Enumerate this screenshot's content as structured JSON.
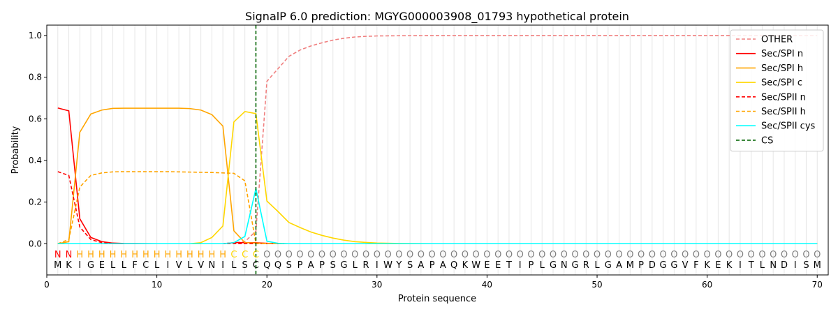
{
  "chart_data": {
    "type": "line",
    "title": "SignalP 6.0 prediction: MGYG000003908_01793 hypothetical protein",
    "xlabel": "Protein sequence",
    "ylabel": "Probability",
    "xlim": [
      0,
      71
    ],
    "ylim": [
      -0.15,
      1.05
    ],
    "xticks": [
      0,
      10,
      20,
      30,
      40,
      50,
      60,
      70
    ],
    "yticks": [
      0.0,
      0.2,
      0.4,
      0.6,
      0.8,
      1.0
    ],
    "grid": "vertical lines at each residue",
    "legend_position": "top-right",
    "sequence": "MKIGELLFCLIVLVNILSCQQSPAPSGLRIWYSAPAQKWEETIPLGNGRLGAMPDGGVFKEKITLNDISM",
    "labels": "NNHHHHHHHHHHHHHHCCCOOOOOOOOOOOOOOOOOOOOOOOOOOOOOOOOOOOOOOOOOOOOOOOOOOO",
    "label_colors": {
      "N": "#ff0000",
      "H": "#ffa500",
      "C": "#ffd700",
      "O": "#808080"
    },
    "cs_position": 19,
    "series": [
      {
        "name": "OTHER",
        "color": "#f08080",
        "dash": true,
        "x": [
          1,
          2,
          3,
          4,
          5,
          6,
          7,
          8,
          9,
          10,
          11,
          12,
          13,
          14,
          15,
          16,
          17,
          18,
          19,
          20,
          21,
          22,
          23,
          24,
          25,
          26,
          27,
          28,
          29,
          30,
          32,
          35,
          40,
          45,
          50,
          55,
          60,
          65,
          70
        ],
        "values": [
          0,
          0,
          0,
          0,
          0,
          0,
          0,
          0,
          0,
          0,
          0,
          0,
          0,
          0,
          0,
          0,
          0.005,
          0.01,
          0.06,
          0.78,
          0.84,
          0.9,
          0.93,
          0.95,
          0.965,
          0.978,
          0.987,
          0.993,
          0.996,
          0.998,
          0.999,
          1,
          1,
          1,
          1,
          1,
          1,
          1,
          1
        ]
      },
      {
        "name": "Sec/SPI n",
        "color": "#ff0000",
        "dash": false,
        "x": [
          1,
          2,
          3,
          4,
          5,
          6,
          7,
          10,
          15,
          16,
          17,
          18,
          19,
          20,
          21,
          70
        ],
        "values": [
          0.652,
          0.638,
          0.12,
          0.03,
          0.01,
          0.003,
          0.001,
          0,
          0,
          0,
          0.005,
          0.005,
          0.005,
          0.002,
          0,
          0
        ]
      },
      {
        "name": "Sec/SPI h",
        "color": "#ffa500",
        "dash": false,
        "x": [
          1,
          2,
          3,
          4,
          5,
          6,
          7,
          8,
          9,
          10,
          11,
          12,
          13,
          14,
          15,
          16,
          17,
          18,
          19,
          20,
          21,
          70
        ],
        "values": [
          0,
          0.01,
          0.535,
          0.623,
          0.642,
          0.65,
          0.651,
          0.651,
          0.651,
          0.651,
          0.651,
          0.651,
          0.649,
          0.642,
          0.62,
          0.565,
          0.062,
          0.005,
          0.003,
          0.001,
          0,
          0
        ]
      },
      {
        "name": "Sec/SPI c",
        "color": "#ffd700",
        "dash": false,
        "x": [
          1,
          2,
          3,
          10,
          13,
          14,
          15,
          16,
          17,
          18,
          19,
          20,
          21,
          22,
          23,
          24,
          25,
          26,
          27,
          28,
          29,
          30,
          32,
          35,
          70
        ],
        "values": [
          0,
          0,
          0,
          0,
          0,
          0.005,
          0.03,
          0.085,
          0.585,
          0.635,
          0.625,
          0.205,
          0.155,
          0.102,
          0.078,
          0.056,
          0.04,
          0.027,
          0.017,
          0.01,
          0.006,
          0.003,
          0.001,
          0,
          0
        ]
      },
      {
        "name": "Sec/SPII n",
        "color": "#ff0000",
        "dash": true,
        "x": [
          1,
          2,
          3,
          4,
          5,
          6,
          7,
          10,
          15,
          16,
          17,
          18,
          19,
          20,
          70
        ],
        "values": [
          0.346,
          0.328,
          0.08,
          0.02,
          0.005,
          0.002,
          0,
          0,
          0,
          0,
          0,
          0,
          0,
          0,
          0
        ]
      },
      {
        "name": "Sec/SPII h",
        "color": "#ffa500",
        "dash": true,
        "x": [
          1,
          2,
          3,
          4,
          5,
          6,
          7,
          8,
          9,
          10,
          11,
          12,
          13,
          14,
          15,
          16,
          17,
          18,
          19,
          20,
          21,
          70
        ],
        "values": [
          0,
          0.02,
          0.272,
          0.328,
          0.34,
          0.345,
          0.346,
          0.346,
          0.346,
          0.346,
          0.346,
          0.345,
          0.344,
          0.343,
          0.342,
          0.34,
          0.338,
          0.302,
          0.002,
          0,
          0,
          0
        ]
      },
      {
        "name": "Sec/SPII cys",
        "color": "#00ffff",
        "dash": false,
        "x": [
          1,
          10,
          15,
          16,
          17,
          18,
          19,
          20,
          21,
          22,
          70
        ],
        "values": [
          0,
          0,
          0,
          0,
          0.005,
          0.035,
          0.265,
          0.012,
          0.002,
          0,
          0
        ]
      },
      {
        "name": "CS",
        "color": "#006400",
        "dash": true,
        "x": [],
        "values": []
      }
    ]
  }
}
